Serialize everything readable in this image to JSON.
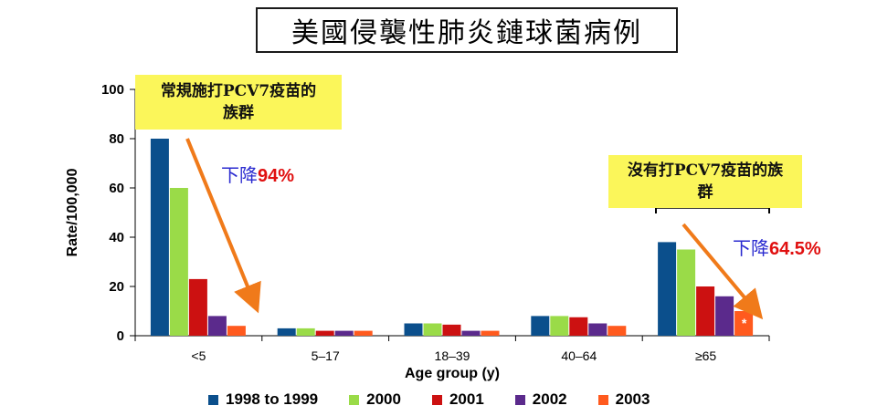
{
  "title": "美國侵襲性肺炎鏈球菌病例",
  "callouts": {
    "left": {
      "line1": "常規施打PCV7疫苗的",
      "line2": "族群"
    },
    "right": {
      "line1": "沒有打PCV7疫苗的族",
      "line2": "群"
    }
  },
  "drops": {
    "left": {
      "word": "下降",
      "value": "94%"
    },
    "right": {
      "word": "下降",
      "value": "64.5%"
    }
  },
  "asterisk": "*",
  "colors": {
    "series": [
      "#0b4f8c",
      "#9adb48",
      "#cc1111",
      "#5b2a8c",
      "#ff5a1e"
    ],
    "arrow": "#f07a1a",
    "callout_bg": "#fbf65a"
  },
  "chart_data": {
    "type": "bar",
    "xlabel": "Age group (y)",
    "ylabel": "Rate/100,000",
    "ylim": [
      0,
      100
    ],
    "yticks": [
      "0",
      "20",
      "40",
      "60",
      "80",
      "100"
    ],
    "categories": [
      "<5",
      "5–17",
      "18–39",
      "40–64",
      "≥65"
    ],
    "series": [
      {
        "name": "1998 to 1999",
        "values": [
          80,
          3,
          5,
          8,
          38
        ]
      },
      {
        "name": "2000",
        "values": [
          60,
          3,
          5,
          8,
          35
        ]
      },
      {
        "name": "2001",
        "values": [
          23,
          2,
          4.5,
          7.5,
          20
        ]
      },
      {
        "name": "2002",
        "values": [
          8,
          2,
          2,
          5,
          16
        ]
      },
      {
        "name": "2003",
        "values": [
          4,
          2,
          2,
          4,
          10
        ]
      }
    ],
    "legend_position": "bottom",
    "grid": false
  }
}
